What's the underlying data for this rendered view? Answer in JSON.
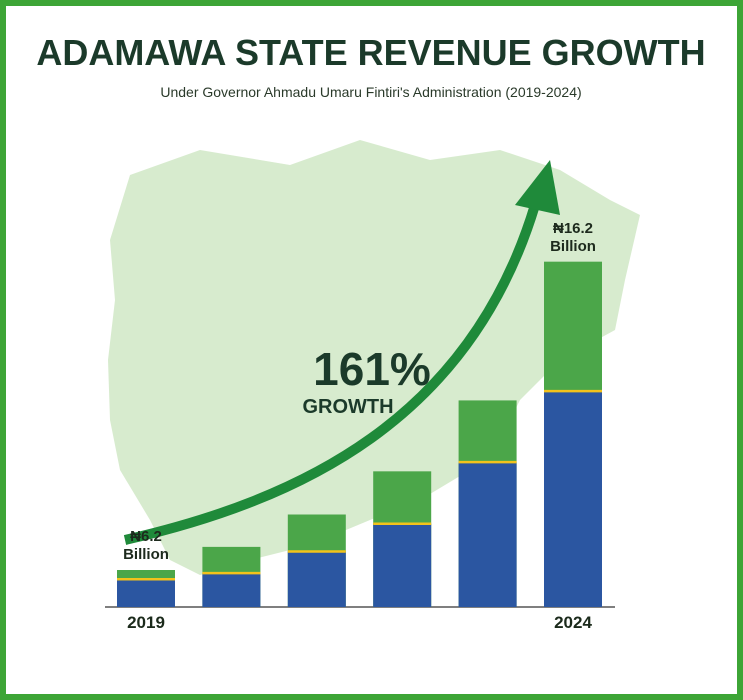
{
  "chart_data": {
    "type": "bar",
    "title": "ADAMAWA STATE REVENUE GROWTH",
    "subtitle": "Under Governor Ahmadu Umaru Fintiri's Administration (2019-2024)",
    "annotation": "161%",
    "annotation_sub": "GROWTH",
    "categories": [
      "2019",
      null,
      null,
      null,
      null,
      "2024"
    ],
    "values": [
      6.2,
      6.95,
      8.0,
      9.4,
      11.7,
      16.2
    ],
    "value_labels": [
      "₦6.2 Billion",
      null,
      null,
      null,
      null,
      "₦16.2 Billion"
    ],
    "inner_values": [
      5.9,
      6.1,
      6.8,
      7.7,
      9.7,
      12.0
    ],
    "color": "#4ba649",
    "inner_color": "#2b56a1",
    "divider_color": "#f2c21b",
    "ylim": [
      5,
      17
    ]
  }
}
